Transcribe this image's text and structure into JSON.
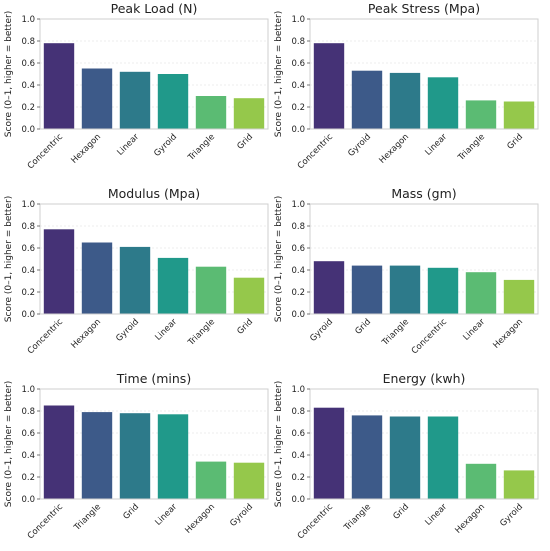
{
  "chart_data": [
    {
      "type": "bar",
      "title": "Peak Load (N)",
      "ylabel": "Score (0–1, higher = better)",
      "ylim": [
        0,
        1.0
      ],
      "yticks": [
        0.0,
        0.2,
        0.4,
        0.6,
        0.8,
        1.0
      ],
      "ytick_labels": [
        "0.0",
        "0.2",
        "0.4",
        "0.6",
        "0.8",
        "1.0"
      ],
      "grid": true,
      "categories": [
        "Concentric",
        "Hexagon",
        "Linear",
        "Gyroid",
        "Triangle",
        "Grid"
      ],
      "values": [
        0.78,
        0.55,
        0.52,
        0.5,
        0.3,
        0.28
      ]
    },
    {
      "type": "bar",
      "title": "Peak Stress (Mpa)",
      "ylabel": "Score (0–1, higher = better)",
      "ylim": [
        0,
        1.0
      ],
      "yticks": [
        0.0,
        0.2,
        0.4,
        0.6,
        0.8,
        1.0
      ],
      "ytick_labels": [
        "0.0",
        "0.2",
        "0.4",
        "0.6",
        "0.8",
        "1.0"
      ],
      "grid": true,
      "categories": [
        "Concentric",
        "Gyroid",
        "Hexagon",
        "Linear",
        "Triangle",
        "Grid"
      ],
      "values": [
        0.78,
        0.53,
        0.51,
        0.47,
        0.26,
        0.25
      ]
    },
    {
      "type": "bar",
      "title": "Modulus (Mpa)",
      "ylabel": "Score (0–1, higher = better)",
      "ylim": [
        0,
        1.0
      ],
      "yticks": [
        0.0,
        0.2,
        0.4,
        0.6,
        0.8,
        1.0
      ],
      "ytick_labels": [
        "0.0",
        "0.2",
        "0.4",
        "0.6",
        "0.8",
        "1.0"
      ],
      "grid": true,
      "categories": [
        "Concentric",
        "Hexagon",
        "Gyroid",
        "Linear",
        "Triangle",
        "Grid"
      ],
      "values": [
        0.77,
        0.65,
        0.61,
        0.51,
        0.43,
        0.33
      ]
    },
    {
      "type": "bar",
      "title": "Mass (gm)",
      "ylabel": "Score (0–1, higher = better)",
      "ylim": [
        0,
        1.0
      ],
      "yticks": [
        0.0,
        0.2,
        0.4,
        0.6,
        0.8,
        1.0
      ],
      "ytick_labels": [
        "0.0",
        "0.2",
        "0.4",
        "0.6",
        "0.8",
        "1.0"
      ],
      "grid": true,
      "categories": [
        "Gyroid",
        "Grid",
        "Triangle",
        "Concentric",
        "Linear",
        "Hexagon"
      ],
      "values": [
        0.48,
        0.44,
        0.44,
        0.42,
        0.38,
        0.31
      ]
    },
    {
      "type": "bar",
      "title": "Time (mins)",
      "ylabel": "Score (0–1, higher = better)",
      "ylim": [
        0,
        1.0
      ],
      "yticks": [
        0.0,
        0.2,
        0.4,
        0.6,
        0.8,
        1.0
      ],
      "ytick_labels": [
        "0.0",
        "0.2",
        "0.4",
        "0.6",
        "0.8",
        "1.0"
      ],
      "grid": true,
      "categories": [
        "Concentric",
        "Triangle",
        "Grid",
        "Linear",
        "Hexagon",
        "Gyroid"
      ],
      "values": [
        0.85,
        0.79,
        0.78,
        0.77,
        0.34,
        0.33
      ]
    },
    {
      "type": "bar",
      "title": "Energy (kwh)",
      "ylabel": "Score (0–1, higher = better)",
      "ylim": [
        0,
        1.0
      ],
      "yticks": [
        0.0,
        0.2,
        0.4,
        0.6,
        0.8,
        1.0
      ],
      "ytick_labels": [
        "0.0",
        "0.2",
        "0.4",
        "0.6",
        "0.8",
        "1.0"
      ],
      "grid": true,
      "categories": [
        "Concentric",
        "Triangle",
        "Grid",
        "Linear",
        "Hexagon",
        "Gyroid"
      ],
      "values": [
        0.83,
        0.76,
        0.75,
        0.75,
        0.32,
        0.26
      ]
    }
  ],
  "colors": {
    "bar_palette": [
      "#453276",
      "#3d5a89",
      "#2d7a8a",
      "#20998a",
      "#5bbb73",
      "#95c84b"
    ],
    "grid": "#e6e6e6",
    "frame": "#cfcfcf",
    "text": "#222222"
  }
}
